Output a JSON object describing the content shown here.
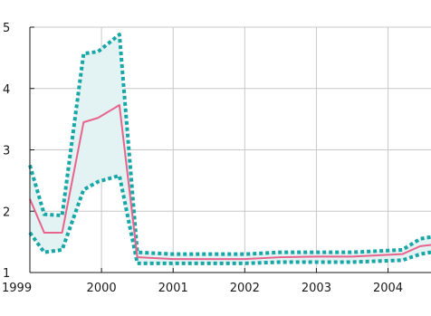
{
  "chart_data": {
    "type": "line",
    "title": "",
    "xlabel": "",
    "ylabel": "",
    "xlim": [
      1999.0,
      2004.6
    ],
    "ylim": [
      1,
      5
    ],
    "x_ticks": [
      1999,
      2000,
      2001,
      2002,
      2003,
      2004
    ],
    "x_tick_labels": [
      "1999",
      "2000",
      "2001",
      "2002",
      "2003",
      "2004"
    ],
    "y_ticks": [
      1,
      2,
      3,
      4,
      5
    ],
    "y_tick_labels": [
      "1",
      "2",
      "3",
      "4",
      "5"
    ],
    "grid": true,
    "colors": {
      "central": "#e8648c",
      "band_line": "#19a6a6",
      "band_fill": "#e3f2f2",
      "grid": "#c8c8c8",
      "axis": "#1a1a1a"
    },
    "series": [
      {
        "role": "upper",
        "x": [
          1999.0,
          1999.2,
          1999.45,
          1999.75,
          1999.95,
          2000.25,
          2000.5,
          2001.0,
          2002.0,
          2002.5,
          2003.0,
          2003.5,
          2004.2,
          2004.45,
          2004.6
        ],
        "values": [
          2.75,
          1.95,
          1.93,
          4.57,
          4.6,
          4.88,
          1.33,
          1.3,
          1.3,
          1.33,
          1.33,
          1.33,
          1.37,
          1.55,
          1.58
        ]
      },
      {
        "role": "central",
        "x": [
          1999.0,
          1999.2,
          1999.45,
          1999.75,
          1999.95,
          2000.25,
          2000.5,
          2001.0,
          2002.0,
          2002.5,
          2003.0,
          2003.5,
          2004.2,
          2004.45,
          2004.6
        ],
        "values": [
          2.2,
          1.65,
          1.65,
          3.45,
          3.52,
          3.73,
          1.25,
          1.22,
          1.22,
          1.25,
          1.26,
          1.26,
          1.3,
          1.43,
          1.45
        ]
      },
      {
        "role": "lower",
        "x": [
          1999.0,
          1999.2,
          1999.45,
          1999.75,
          1999.95,
          2000.25,
          2000.5,
          2001.0,
          2002.0,
          2002.5,
          2003.0,
          2003.5,
          2004.2,
          2004.45,
          2004.6
        ],
        "values": [
          1.65,
          1.33,
          1.37,
          2.35,
          2.48,
          2.58,
          1.15,
          1.15,
          1.15,
          1.17,
          1.17,
          1.17,
          1.2,
          1.3,
          1.33
        ]
      }
    ]
  }
}
